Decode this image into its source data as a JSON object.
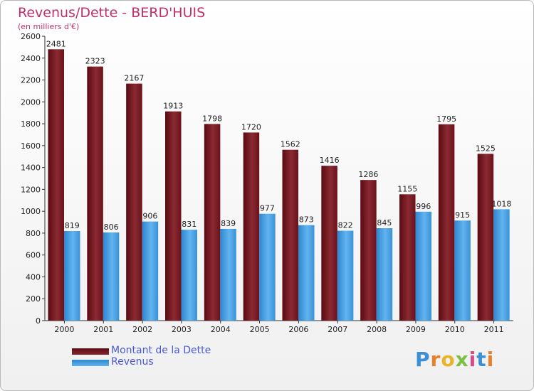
{
  "header": {
    "title": "Revenus/Dette - BERD'HUIS",
    "subtitle": "(en milliers d'€)"
  },
  "chart_data": {
    "type": "bar",
    "categories": [
      "2000",
      "2001",
      "2002",
      "2003",
      "2004",
      "2005",
      "2006",
      "2007",
      "2008",
      "2009",
      "2010",
      "2011"
    ],
    "series": [
      {
        "name": "Montant de la Dette",
        "color": "#7a1a22",
        "values": [
          2481,
          2323,
          2167,
          1913,
          1798,
          1720,
          1562,
          1416,
          1286,
          1155,
          1795,
          1525
        ]
      },
      {
        "name": "Revenus",
        "color": "#4aa3e6",
        "values": [
          819,
          806,
          906,
          831,
          839,
          977,
          873,
          822,
          845,
          996,
          915,
          1018
        ]
      }
    ],
    "ylim": [
      0,
      2600
    ],
    "yticks": [
      0,
      200,
      400,
      600,
      800,
      1000,
      1200,
      1400,
      1600,
      1800,
      2000,
      2200,
      2400,
      2600
    ],
    "grid": false,
    "legend_position": "bottom-left"
  },
  "logo": {
    "letters": [
      "P",
      "r",
      "o",
      "x",
      "i",
      "t",
      "i"
    ],
    "colors": [
      "#3a8fd8",
      "#e87f2a",
      "#e8b52a",
      "#7bc043",
      "#d64a8a",
      "#3a8fd8",
      "#e87f2a"
    ]
  }
}
